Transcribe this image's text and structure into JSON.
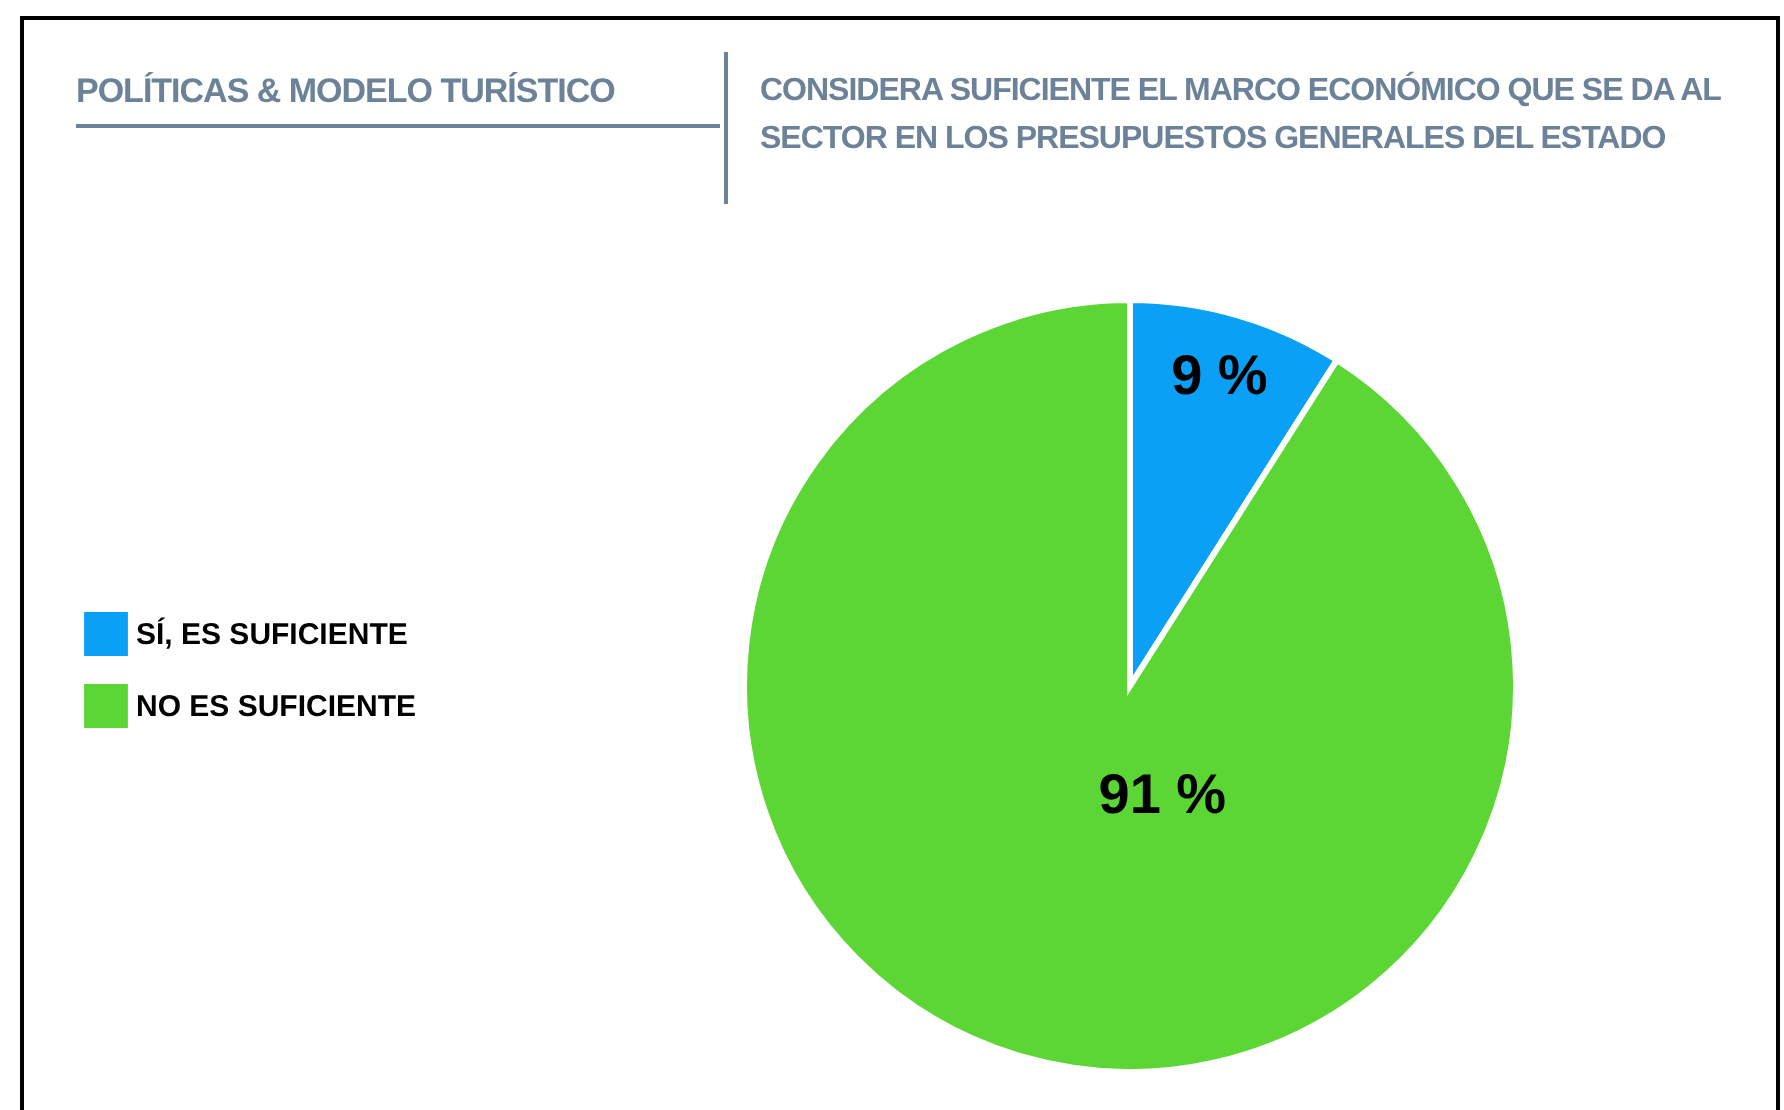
{
  "chart_data": {
    "type": "pie",
    "title": "POLÍTICAS & MODELO TURÍSTICO",
    "subtitle": "CONSIDERA SUFICIENTE EL MARCO ECONÓMICO QUE SE DA AL SECTOR EN LOS PRESUPUESTOS GENERALES DEL ESTADO",
    "categories": [
      "SÍ, ES SUFICIENTE",
      "NO ES SUFICIENTE"
    ],
    "values": [
      9,
      91
    ],
    "colors": [
      "#0aa0f5",
      "#5cd635"
    ],
    "value_labels": [
      "9 %",
      "91 %"
    ],
    "legend": "left"
  }
}
